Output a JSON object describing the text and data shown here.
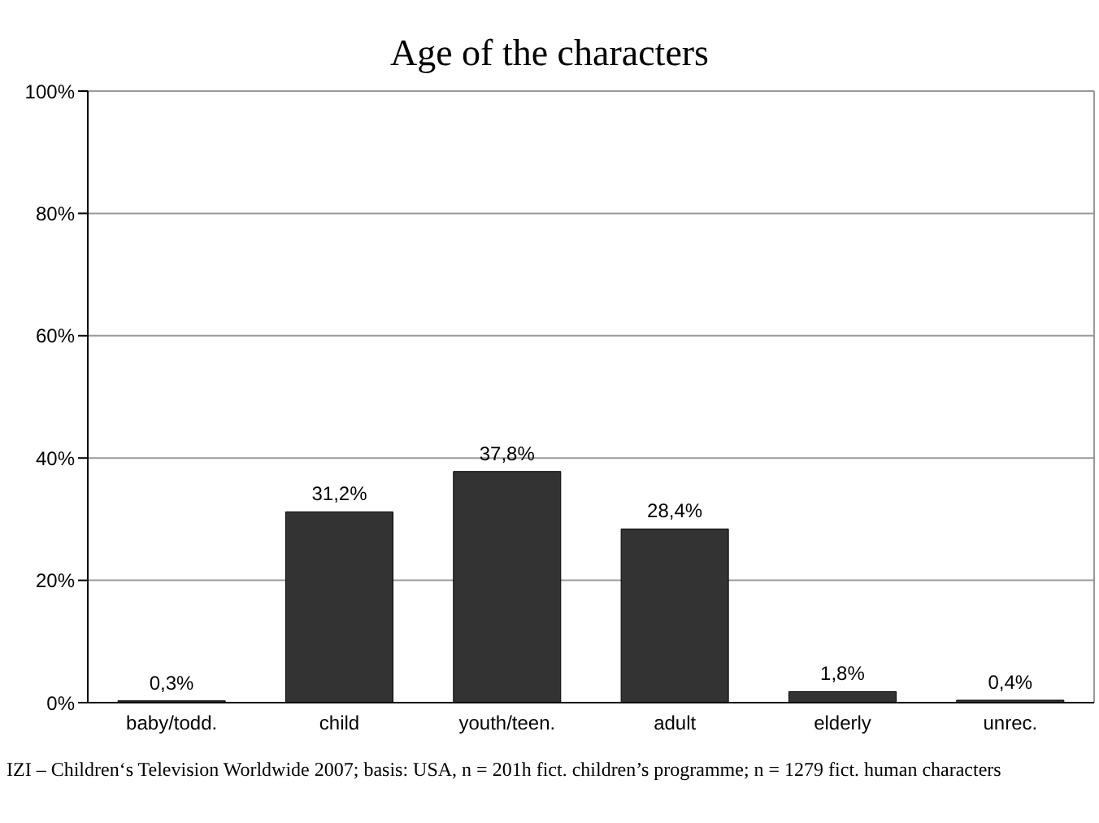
{
  "chart_data": {
    "type": "bar",
    "title": "Age of the characters",
    "categories": [
      "baby/todd.",
      "child",
      "youth/teen.",
      "adult",
      "elderly",
      "unrec."
    ],
    "values": [
      0.3,
      31.2,
      37.8,
      28.4,
      1.8,
      0.4
    ],
    "value_labels": [
      "0,3%",
      "31,2%",
      "37,8%",
      "28,4%",
      "1,8%",
      "0,4%"
    ],
    "color": "#333333",
    "ylim": [
      0,
      100
    ],
    "yticks": [
      {
        "value": 0,
        "label": "0%"
      },
      {
        "value": 20,
        "label": "20%"
      },
      {
        "value": 40,
        "label": "40%"
      },
      {
        "value": 60,
        "label": "60%"
      },
      {
        "value": 80,
        "label": "80%"
      },
      {
        "value": 100,
        "label": "100%"
      }
    ],
    "grid": "y",
    "annotations": [
      "IZI – Children‘s Television Worldwide 2007; basis: USA, n = 201h fict. children’s programme; n = 1279 fict. human characters"
    ]
  }
}
